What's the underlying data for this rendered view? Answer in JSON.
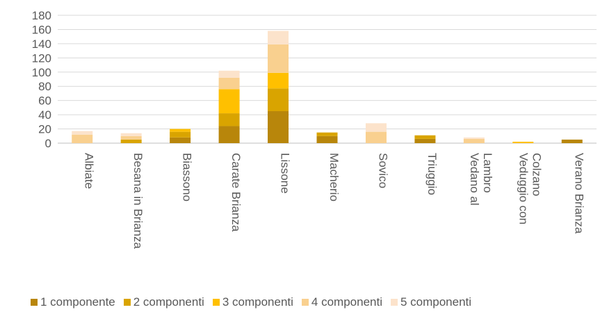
{
  "chart_data": {
    "type": "bar",
    "stacked": true,
    "categories": [
      "Albiate",
      "Besana in Brianza",
      "Biassono",
      "Carate Brianza",
      "Lissone",
      "Macherio",
      "Sovico",
      "Triuggio",
      "Vedano al Lambro",
      "Veduggio con Colzano",
      "Verano Brianza"
    ],
    "category_lines": [
      [
        "Albiate"
      ],
      [
        "Besana in Brianza"
      ],
      [
        "Biassono"
      ],
      [
        "Carate Brianza"
      ],
      [
        "Lissone"
      ],
      [
        "Macherio"
      ],
      [
        "Sovico"
      ],
      [
        "Triuggio"
      ],
      [
        "Vedano al",
        "Lambro"
      ],
      [
        "Veduggio con",
        "Colzano"
      ],
      [
        "Verano Brianza"
      ]
    ],
    "series": [
      {
        "name": "1 componente",
        "color": "#B8860B",
        "values": [
          0,
          0,
          8,
          24,
          45,
          10,
          0,
          6,
          0,
          0,
          5
        ]
      },
      {
        "name": "2 componenti",
        "color": "#D9A400",
        "values": [
          0,
          5,
          8,
          18,
          32,
          5,
          0,
          5,
          0,
          0,
          0
        ]
      },
      {
        "name": "3 componenti",
        "color": "#FFC000",
        "values": [
          0,
          0,
          4,
          34,
          22,
          0,
          0,
          0,
          0,
          2,
          0
        ]
      },
      {
        "name": "4 componenti",
        "color": "#F9D08F",
        "values": [
          12,
          5,
          0,
          16,
          40,
          0,
          16,
          0,
          6,
          0,
          0
        ]
      },
      {
        "name": "5 componenti",
        "color": "#FCE3CB",
        "values": [
          5,
          4,
          0,
          10,
          19,
          0,
          12,
          0,
          2,
          0,
          0
        ]
      }
    ],
    "yticks": [
      0,
      20,
      40,
      60,
      80,
      100,
      120,
      140,
      160,
      180
    ],
    "ylim": [
      0,
      180
    ],
    "grid": true,
    "legend": "bottom"
  }
}
